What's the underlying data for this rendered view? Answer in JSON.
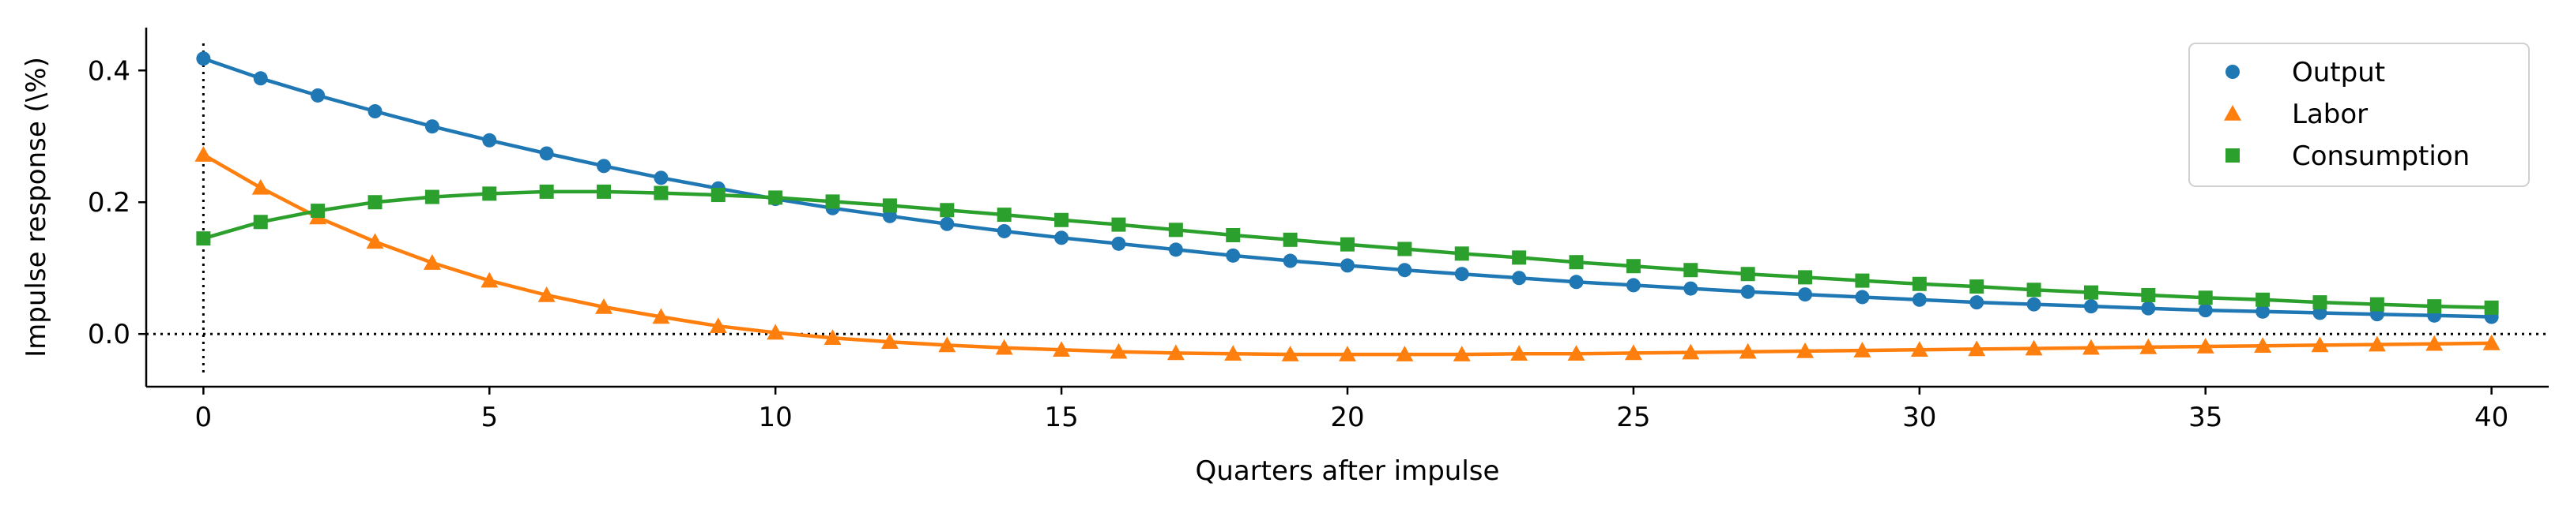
{
  "chart_data": {
    "type": "line",
    "title": "",
    "xlabel": "Quarters after impulse",
    "ylabel": "Impulse response (\\%)",
    "xlim": [
      -1,
      41
    ],
    "ylim": [
      -0.08,
      0.465
    ],
    "xticks": [
      0,
      5,
      10,
      15,
      20,
      25,
      30,
      35,
      40
    ],
    "yticks": [
      0.0,
      0.2,
      0.4
    ],
    "ytick_labels": [
      "0.0",
      "0.2",
      "0.4"
    ],
    "grid": false,
    "legend_position": "top-right",
    "reference_lines": {
      "vertical_x": 0,
      "horizontal_y": 0,
      "style": "dotted"
    },
    "x": [
      0,
      1,
      2,
      3,
      4,
      5,
      6,
      7,
      8,
      9,
      10,
      11,
      12,
      13,
      14,
      15,
      16,
      17,
      18,
      19,
      20,
      21,
      22,
      23,
      24,
      25,
      26,
      27,
      28,
      29,
      30,
      31,
      32,
      33,
      34,
      35,
      36,
      37,
      38,
      39,
      40
    ],
    "series": [
      {
        "name": "Output",
        "color": "#1f77b4",
        "marker": "circle",
        "values": [
          0.418,
          0.388,
          0.362,
          0.338,
          0.315,
          0.294,
          0.274,
          0.255,
          0.237,
          0.221,
          0.205,
          0.191,
          0.179,
          0.167,
          0.156,
          0.146,
          0.137,
          0.128,
          0.119,
          0.111,
          0.104,
          0.097,
          0.091,
          0.085,
          0.079,
          0.074,
          0.069,
          0.064,
          0.06,
          0.056,
          0.052,
          0.048,
          0.045,
          0.042,
          0.039,
          0.036,
          0.034,
          0.032,
          0.03,
          0.028,
          0.026
        ]
      },
      {
        "name": "Labor",
        "color": "#ff7f0e",
        "marker": "triangle",
        "values": [
          0.272,
          0.222,
          0.177,
          0.14,
          0.108,
          0.081,
          0.059,
          0.041,
          0.026,
          0.012,
          0.002,
          -0.006,
          -0.012,
          -0.017,
          -0.021,
          -0.024,
          -0.027,
          -0.029,
          -0.03,
          -0.031,
          -0.031,
          -0.031,
          -0.031,
          -0.03,
          -0.03,
          -0.029,
          -0.028,
          -0.027,
          -0.026,
          -0.025,
          -0.024,
          -0.023,
          -0.022,
          -0.021,
          -0.02,
          -0.019,
          -0.018,
          -0.017,
          -0.016,
          -0.015,
          -0.014
        ]
      },
      {
        "name": "Consumption",
        "color": "#2ca02c",
        "marker": "square",
        "values": [
          0.145,
          0.17,
          0.187,
          0.2,
          0.208,
          0.213,
          0.216,
          0.216,
          0.214,
          0.211,
          0.207,
          0.201,
          0.195,
          0.188,
          0.181,
          0.173,
          0.166,
          0.158,
          0.15,
          0.143,
          0.136,
          0.129,
          0.122,
          0.116,
          0.109,
          0.103,
          0.097,
          0.091,
          0.086,
          0.081,
          0.076,
          0.072,
          0.067,
          0.063,
          0.059,
          0.055,
          0.052,
          0.048,
          0.045,
          0.042,
          0.04
        ]
      }
    ]
  }
}
